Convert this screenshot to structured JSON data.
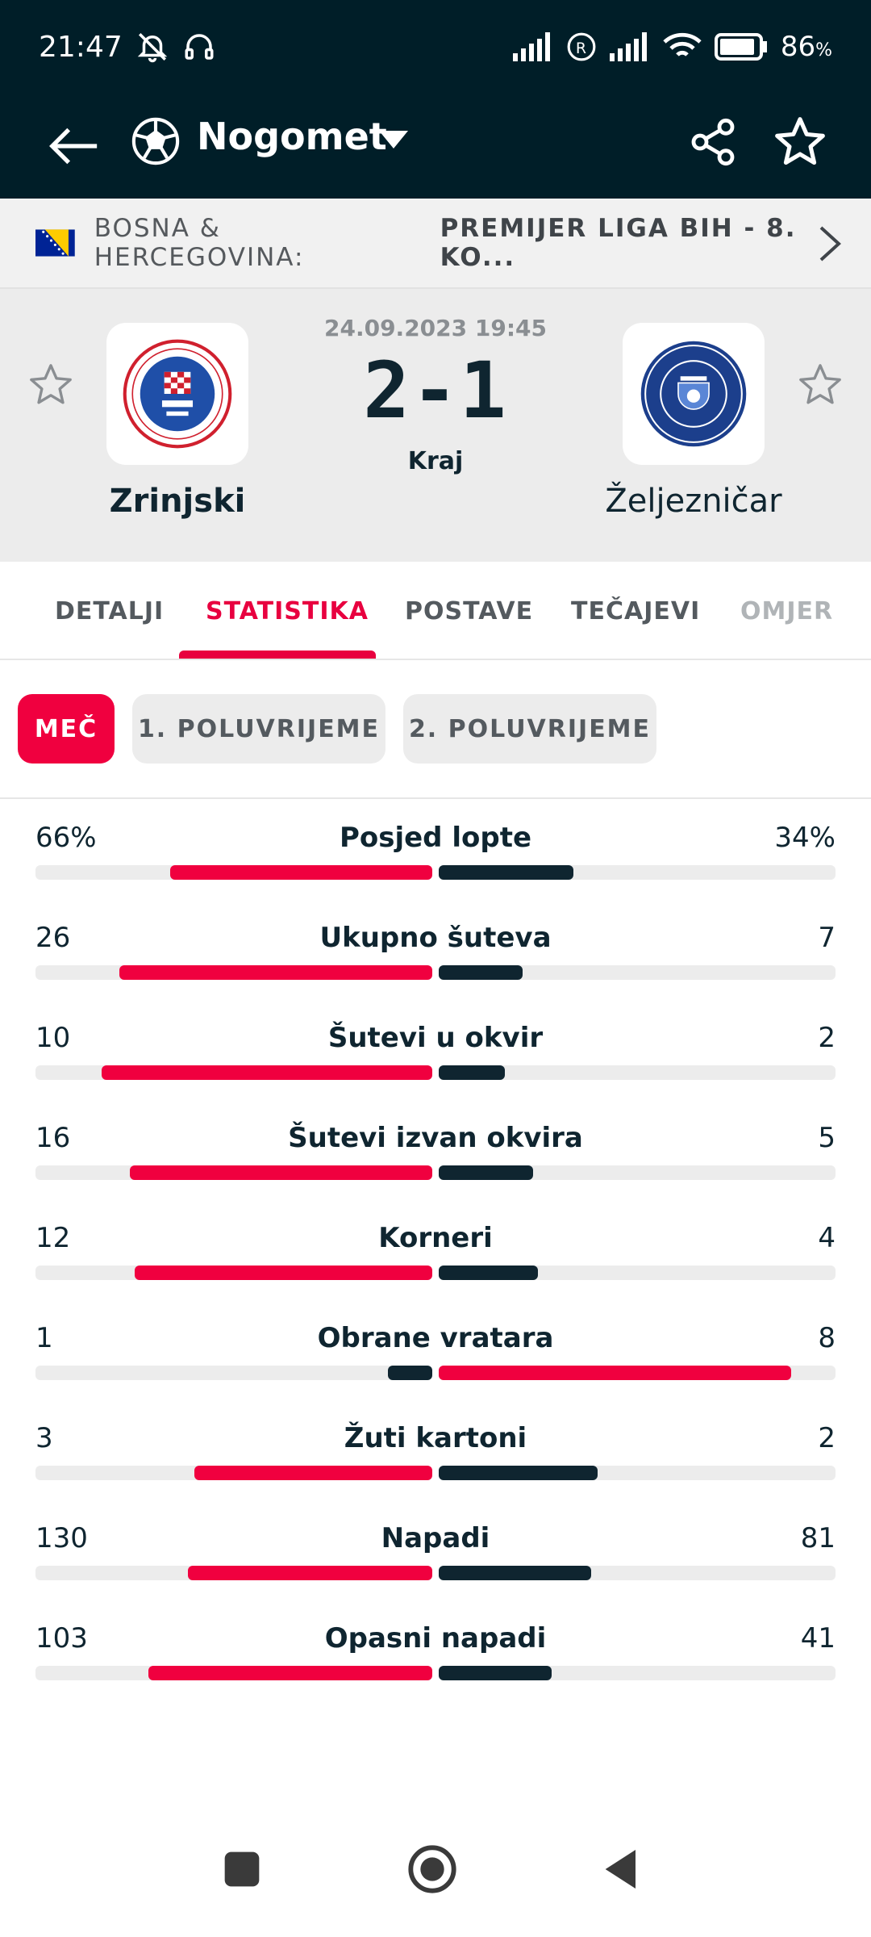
{
  "status_bar": {
    "time": "21:47",
    "battery": "86"
  },
  "app_bar": {
    "title": "Nogomet"
  },
  "league": {
    "country": "BOSNA & HERCEGOVINA:",
    "name": "PREMIJER LIGA BIH - 8. KO..."
  },
  "match": {
    "date": "24.09.2023 19:45",
    "score": "2-1",
    "status": "Kraj",
    "home": {
      "name": "Zrinjski"
    },
    "away": {
      "name": "Željezničar"
    }
  },
  "tabs": [
    "DETALJI",
    "STATISTIKA",
    "POSTAVE",
    "TEČAJEVI",
    "OMJER"
  ],
  "filters": [
    "MEČ",
    "1. POLUVRIJEME",
    "2. POLUVRIJEME"
  ],
  "colors": {
    "accent": "#f0003f",
    "dark": "#0f2530",
    "track": "#ececec"
  },
  "stats": [
    {
      "label": "Posjed lopte",
      "home": "66%",
      "away": "34%",
      "home_share": 0.66,
      "away_share": 0.34,
      "leader": "home"
    },
    {
      "label": "Ukupno šuteva",
      "home": "26",
      "away": "7",
      "home_share": 0.788,
      "away_share": 0.212,
      "leader": "home"
    },
    {
      "label": "Šutevi u okvir",
      "home": "10",
      "away": "2",
      "home_share": 0.833,
      "away_share": 0.167,
      "leader": "home"
    },
    {
      "label": "Šutevi izvan okvira",
      "home": "16",
      "away": "5",
      "home_share": 0.762,
      "away_share": 0.238,
      "leader": "home"
    },
    {
      "label": "Korneri",
      "home": "12",
      "away": "4",
      "home_share": 0.75,
      "away_share": 0.25,
      "leader": "home"
    },
    {
      "label": "Obrane vratara",
      "home": "1",
      "away": "8",
      "home_share": 0.111,
      "away_share": 0.889,
      "leader": "away"
    },
    {
      "label": "Žuti kartoni",
      "home": "3",
      "away": "2",
      "home_share": 0.6,
      "away_share": 0.4,
      "leader": "home"
    },
    {
      "label": "Napadi",
      "home": "130",
      "away": "81",
      "home_share": 0.616,
      "away_share": 0.384,
      "leader": "home"
    },
    {
      "label": "Opasni napadi",
      "home": "103",
      "away": "41",
      "home_share": 0.715,
      "away_share": 0.285,
      "leader": "home"
    }
  ]
}
